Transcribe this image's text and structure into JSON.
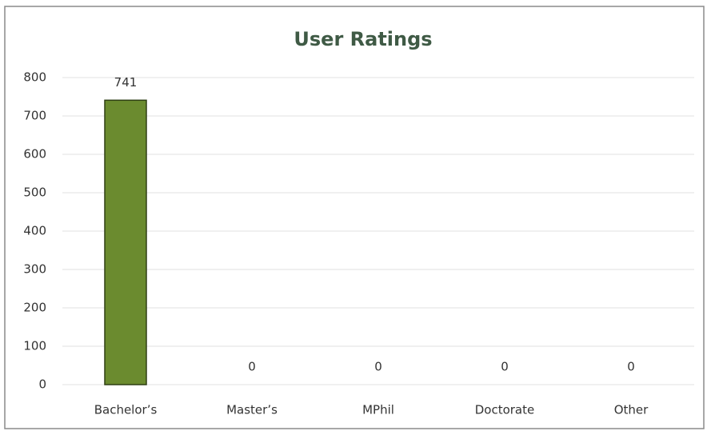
{
  "chart_data": {
    "type": "bar",
    "title": "User Ratings",
    "categories": [
      "Bachelor’s",
      "Master’s",
      "MPhil",
      "Doctorate",
      "Other"
    ],
    "values": [
      741,
      0,
      0,
      0,
      0
    ],
    "color": "#6b8b2f",
    "ylim": [
      0,
      800
    ],
    "yticks": [
      0,
      100,
      200,
      300,
      400,
      500,
      600,
      700,
      800
    ],
    "grid": true
  }
}
